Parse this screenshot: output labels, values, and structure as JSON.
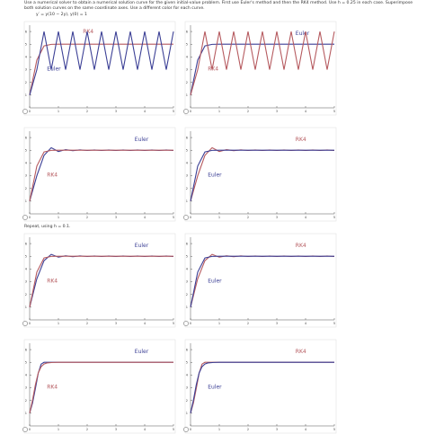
{
  "header": {
    "instructions": "Use a numerical solver to obtain a numerical solution curve for the given initial-value problem. First use Euler's method and then the RK4 method. Use h = 0.25 in each case. Superimpose both solution curves on the same coordinate axes. Use a different color for each curve.",
    "equation": "y′ = y(10 − 2y),    y(0) = 1",
    "repeat": "Repeat, using h = 0.1."
  },
  "chart_data": [
    {
      "type": "line",
      "x": [
        0,
        0.25,
        0.5,
        0.75,
        1,
        1.25,
        1.5,
        1.75,
        2,
        2.25,
        2.5,
        2.75,
        3,
        3.25,
        3.5,
        3.75,
        4,
        4.25,
        4.5,
        4.75,
        5
      ],
      "xlim": [
        0,
        5
      ],
      "ylim": [
        0,
        6.5
      ],
      "xticks": [
        0,
        1,
        2,
        3,
        4,
        5
      ],
      "yticks": [
        1,
        2,
        3,
        4,
        5,
        6
      ],
      "series": [
        {
          "name": "RK4",
          "color": "#b5595e",
          "values": [
            1,
            3.76,
            4.87,
            4.99,
            5,
            5,
            5,
            5,
            5,
            5,
            5,
            5,
            5,
            5,
            5,
            5,
            5,
            5,
            5,
            5,
            5
          ]
        },
        {
          "name": "Euler",
          "color": "#3b3f95",
          "values": [
            1,
            3,
            6,
            3,
            6,
            3,
            6,
            3,
            6,
            3,
            6,
            3,
            6,
            3,
            6,
            3,
            6,
            3,
            6,
            3,
            6
          ]
        }
      ]
    },
    {
      "type": "line",
      "x": [
        0,
        0.25,
        0.5,
        0.75,
        1,
        1.25,
        1.5,
        1.75,
        2,
        2.25,
        2.5,
        2.75,
        3,
        3.25,
        3.5,
        3.75,
        4,
        4.25,
        4.5,
        4.75,
        5
      ],
      "xlim": [
        0,
        5
      ],
      "ylim": [
        0,
        6.5
      ],
      "xticks": [
        0,
        1,
        2,
        3,
        4,
        5
      ],
      "yticks": [
        1,
        2,
        3,
        4,
        5,
        6
      ],
      "series": [
        {
          "name": "Euler",
          "color": "#3b3f95",
          "values": [
            1,
            3.76,
            4.87,
            4.99,
            5,
            5,
            5,
            5,
            5,
            5,
            5,
            5,
            5,
            5,
            5,
            5,
            5,
            5,
            5,
            5,
            5
          ]
        },
        {
          "name": "RK4",
          "color": "#b5595e",
          "values": [
            1,
            3,
            6,
            3,
            6,
            3,
            6,
            3,
            6,
            3,
            6,
            3,
            6,
            3,
            6,
            3,
            6,
            3,
            6,
            3,
            6
          ]
        }
      ]
    },
    {
      "type": "line",
      "x": [
        0,
        0.25,
        0.5,
        0.75,
        1,
        1.25,
        1.5,
        1.75,
        2,
        2.25,
        2.5,
        2.75,
        3,
        3.25,
        3.5,
        3.75,
        4,
        4.25,
        4.5,
        4.75,
        5
      ],
      "xlim": [
        0,
        5
      ],
      "ylim": [
        0,
        6.5
      ],
      "xticks": [
        0,
        1,
        2,
        3,
        4,
        5
      ],
      "yticks": [
        1,
        2,
        3,
        4,
        5,
        6
      ],
      "series": [
        {
          "name": "Euler",
          "color": "#3b3f95",
          "values": [
            1,
            3,
            4.6,
            5.2,
            4.9,
            5.05,
            4.97,
            5.03,
            4.98,
            5.02,
            4.98,
            5.02,
            4.98,
            5.02,
            4.98,
            5.02,
            4.98,
            5.02,
            4.98,
            5.02,
            4.98
          ]
        },
        {
          "name": "RK4",
          "color": "#b5595e",
          "values": [
            1,
            3.76,
            4.87,
            4.99,
            5,
            5,
            5,
            5,
            5,
            5,
            5,
            5,
            5,
            5,
            5,
            5,
            5,
            5,
            5,
            5,
            5
          ]
        }
      ]
    },
    {
      "type": "line",
      "x": [
        0,
        0.25,
        0.5,
        0.75,
        1,
        1.25,
        1.5,
        1.75,
        2,
        2.25,
        2.5,
        2.75,
        3,
        3.25,
        3.5,
        3.75,
        4,
        4.25,
        4.5,
        4.75,
        5
      ],
      "xlim": [
        0,
        5
      ],
      "ylim": [
        0,
        6.5
      ],
      "xticks": [
        0,
        1,
        2,
        3,
        4,
        5
      ],
      "yticks": [
        1,
        2,
        3,
        4,
        5,
        6
      ],
      "series": [
        {
          "name": "RK4",
          "color": "#b5595e",
          "values": [
            1,
            3,
            4.6,
            5.2,
            4.9,
            5.05,
            4.97,
            5.03,
            4.98,
            5.02,
            4.98,
            5.02,
            4.98,
            5.02,
            4.98,
            5.02,
            4.98,
            5.02,
            4.98,
            5.02,
            4.98
          ]
        },
        {
          "name": "Euler",
          "color": "#3b3f95",
          "values": [
            1,
            3.76,
            4.87,
            4.99,
            5,
            5,
            5,
            5,
            5,
            5,
            5,
            5,
            5,
            5,
            5,
            5,
            5,
            5,
            5,
            5,
            5
          ]
        }
      ]
    },
    {
      "type": "line",
      "x": [
        0,
        0.25,
        0.5,
        0.75,
        1,
        1.25,
        1.5,
        1.75,
        2,
        2.25,
        2.5,
        2.75,
        3,
        3.25,
        3.5,
        3.75,
        4,
        4.25,
        4.5,
        4.75,
        5
      ],
      "xlim": [
        0,
        5
      ],
      "ylim": [
        0,
        6.5
      ],
      "xticks": [
        0,
        1,
        2,
        3,
        4,
        5
      ],
      "yticks": [
        1,
        2,
        3,
        4,
        5,
        6
      ],
      "series": [
        {
          "name": "Euler",
          "color": "#3b3f95",
          "values": [
            1,
            3.24,
            4.66,
            5.15,
            4.93,
            5.04,
            4.97,
            5.03,
            4.98,
            5.02,
            4.98,
            5.02,
            4.98,
            5.02,
            4.98,
            5.02,
            4.98,
            5.02,
            4.98,
            5.02,
            4.98
          ]
        },
        {
          "name": "RK4",
          "color": "#b5595e",
          "values": [
            1,
            3.76,
            4.87,
            4.99,
            5,
            5,
            5,
            5,
            5,
            5,
            5,
            5,
            5,
            5,
            5,
            5,
            5,
            5,
            5,
            5,
            5
          ]
        }
      ]
    },
    {
      "type": "line",
      "x": [
        0,
        0.25,
        0.5,
        0.75,
        1,
        1.25,
        1.5,
        1.75,
        2,
        2.25,
        2.5,
        2.75,
        3,
        3.25,
        3.5,
        3.75,
        4,
        4.25,
        4.5,
        4.75,
        5
      ],
      "xlim": [
        0,
        5
      ],
      "ylim": [
        0,
        6.5
      ],
      "xticks": [
        0,
        1,
        2,
        3,
        4,
        5
      ],
      "yticks": [
        1,
        2,
        3,
        4,
        5,
        6
      ],
      "series": [
        {
          "name": "RK4",
          "color": "#b5595e",
          "values": [
            1,
            3.24,
            4.66,
            5.15,
            4.93,
            5.04,
            4.97,
            5.03,
            4.98,
            5.02,
            4.98,
            5.02,
            4.98,
            5.02,
            4.98,
            5.02,
            4.98,
            5.02,
            4.98,
            5.02,
            4.98
          ]
        },
        {
          "name": "Euler",
          "color": "#3b3f95",
          "values": [
            1,
            3.76,
            4.87,
            4.99,
            5,
            5,
            5,
            5,
            5,
            5,
            5,
            5,
            5,
            5,
            5,
            5,
            5,
            5,
            5,
            5,
            5
          ]
        }
      ]
    },
    {
      "type": "line",
      "x": [
        0,
        0.1,
        0.2,
        0.3,
        0.4,
        0.5,
        0.6,
        0.8,
        1,
        2,
        3,
        4,
        5
      ],
      "xlim": [
        0,
        5
      ],
      "ylim": [
        0,
        6.5
      ],
      "xticks": [
        0,
        1,
        2,
        3,
        4,
        5
      ],
      "yticks": [
        1,
        2,
        3,
        4,
        5,
        6
      ],
      "series": [
        {
          "name": "Euler",
          "color": "#3b3f95",
          "values": [
            1,
            1.8,
            2.95,
            4.16,
            4.86,
            5,
            5,
            5,
            5,
            5,
            5,
            5,
            5
          ]
        },
        {
          "name": "RK4",
          "color": "#b5595e",
          "values": [
            1,
            2.02,
            3.24,
            4.17,
            4.66,
            4.87,
            4.95,
            4.99,
            5,
            5,
            5,
            5,
            5
          ]
        }
      ]
    },
    {
      "type": "line",
      "x": [
        0,
        0.1,
        0.2,
        0.3,
        0.4,
        0.5,
        0.6,
        0.8,
        1,
        2,
        3,
        4,
        5
      ],
      "xlim": [
        0,
        5
      ],
      "ylim": [
        0,
        6.5
      ],
      "xticks": [
        0,
        1,
        2,
        3,
        4,
        5
      ],
      "yticks": [
        1,
        2,
        3,
        4,
        5,
        6
      ],
      "series": [
        {
          "name": "RK4",
          "color": "#b5595e",
          "values": [
            1,
            1.8,
            2.95,
            4.16,
            4.86,
            5,
            5,
            5,
            5,
            5,
            5,
            5,
            5
          ]
        },
        {
          "name": "Euler",
          "color": "#3b3f95",
          "values": [
            1,
            2.02,
            3.24,
            4.17,
            4.66,
            4.87,
            4.95,
            4.99,
            5,
            5,
            5,
            5,
            5
          ]
        }
      ]
    }
  ]
}
